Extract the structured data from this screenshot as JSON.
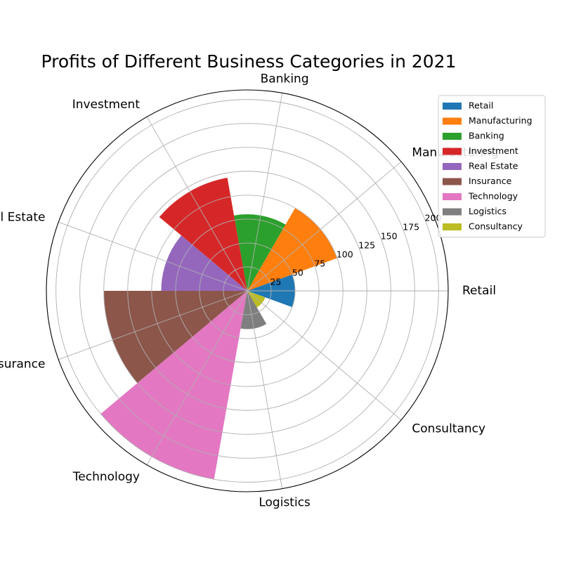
{
  "chart_data": {
    "type": "polar-bar",
    "title": "Profits of Different Business Categories in 2021",
    "categories": [
      "Retail",
      "Manufacturing",
      "Banking",
      "Investment",
      "Real Estate",
      "Insurance",
      "Technology",
      "Logistics",
      "Consultancy"
    ],
    "values": [
      50,
      100,
      80,
      120,
      90,
      150,
      200,
      40,
      20
    ],
    "colors": [
      "#1f77b4",
      "#ff7f0e",
      "#2ca02c",
      "#d62728",
      "#9467bd",
      "#8c564b",
      "#e377c2",
      "#7f7f7f",
      "#bcbd22"
    ],
    "rticks": [
      25,
      50,
      75,
      100,
      125,
      150,
      175,
      200
    ],
    "rlim": [
      0,
      210
    ],
    "grid": true,
    "legend_position": "upper-right"
  }
}
